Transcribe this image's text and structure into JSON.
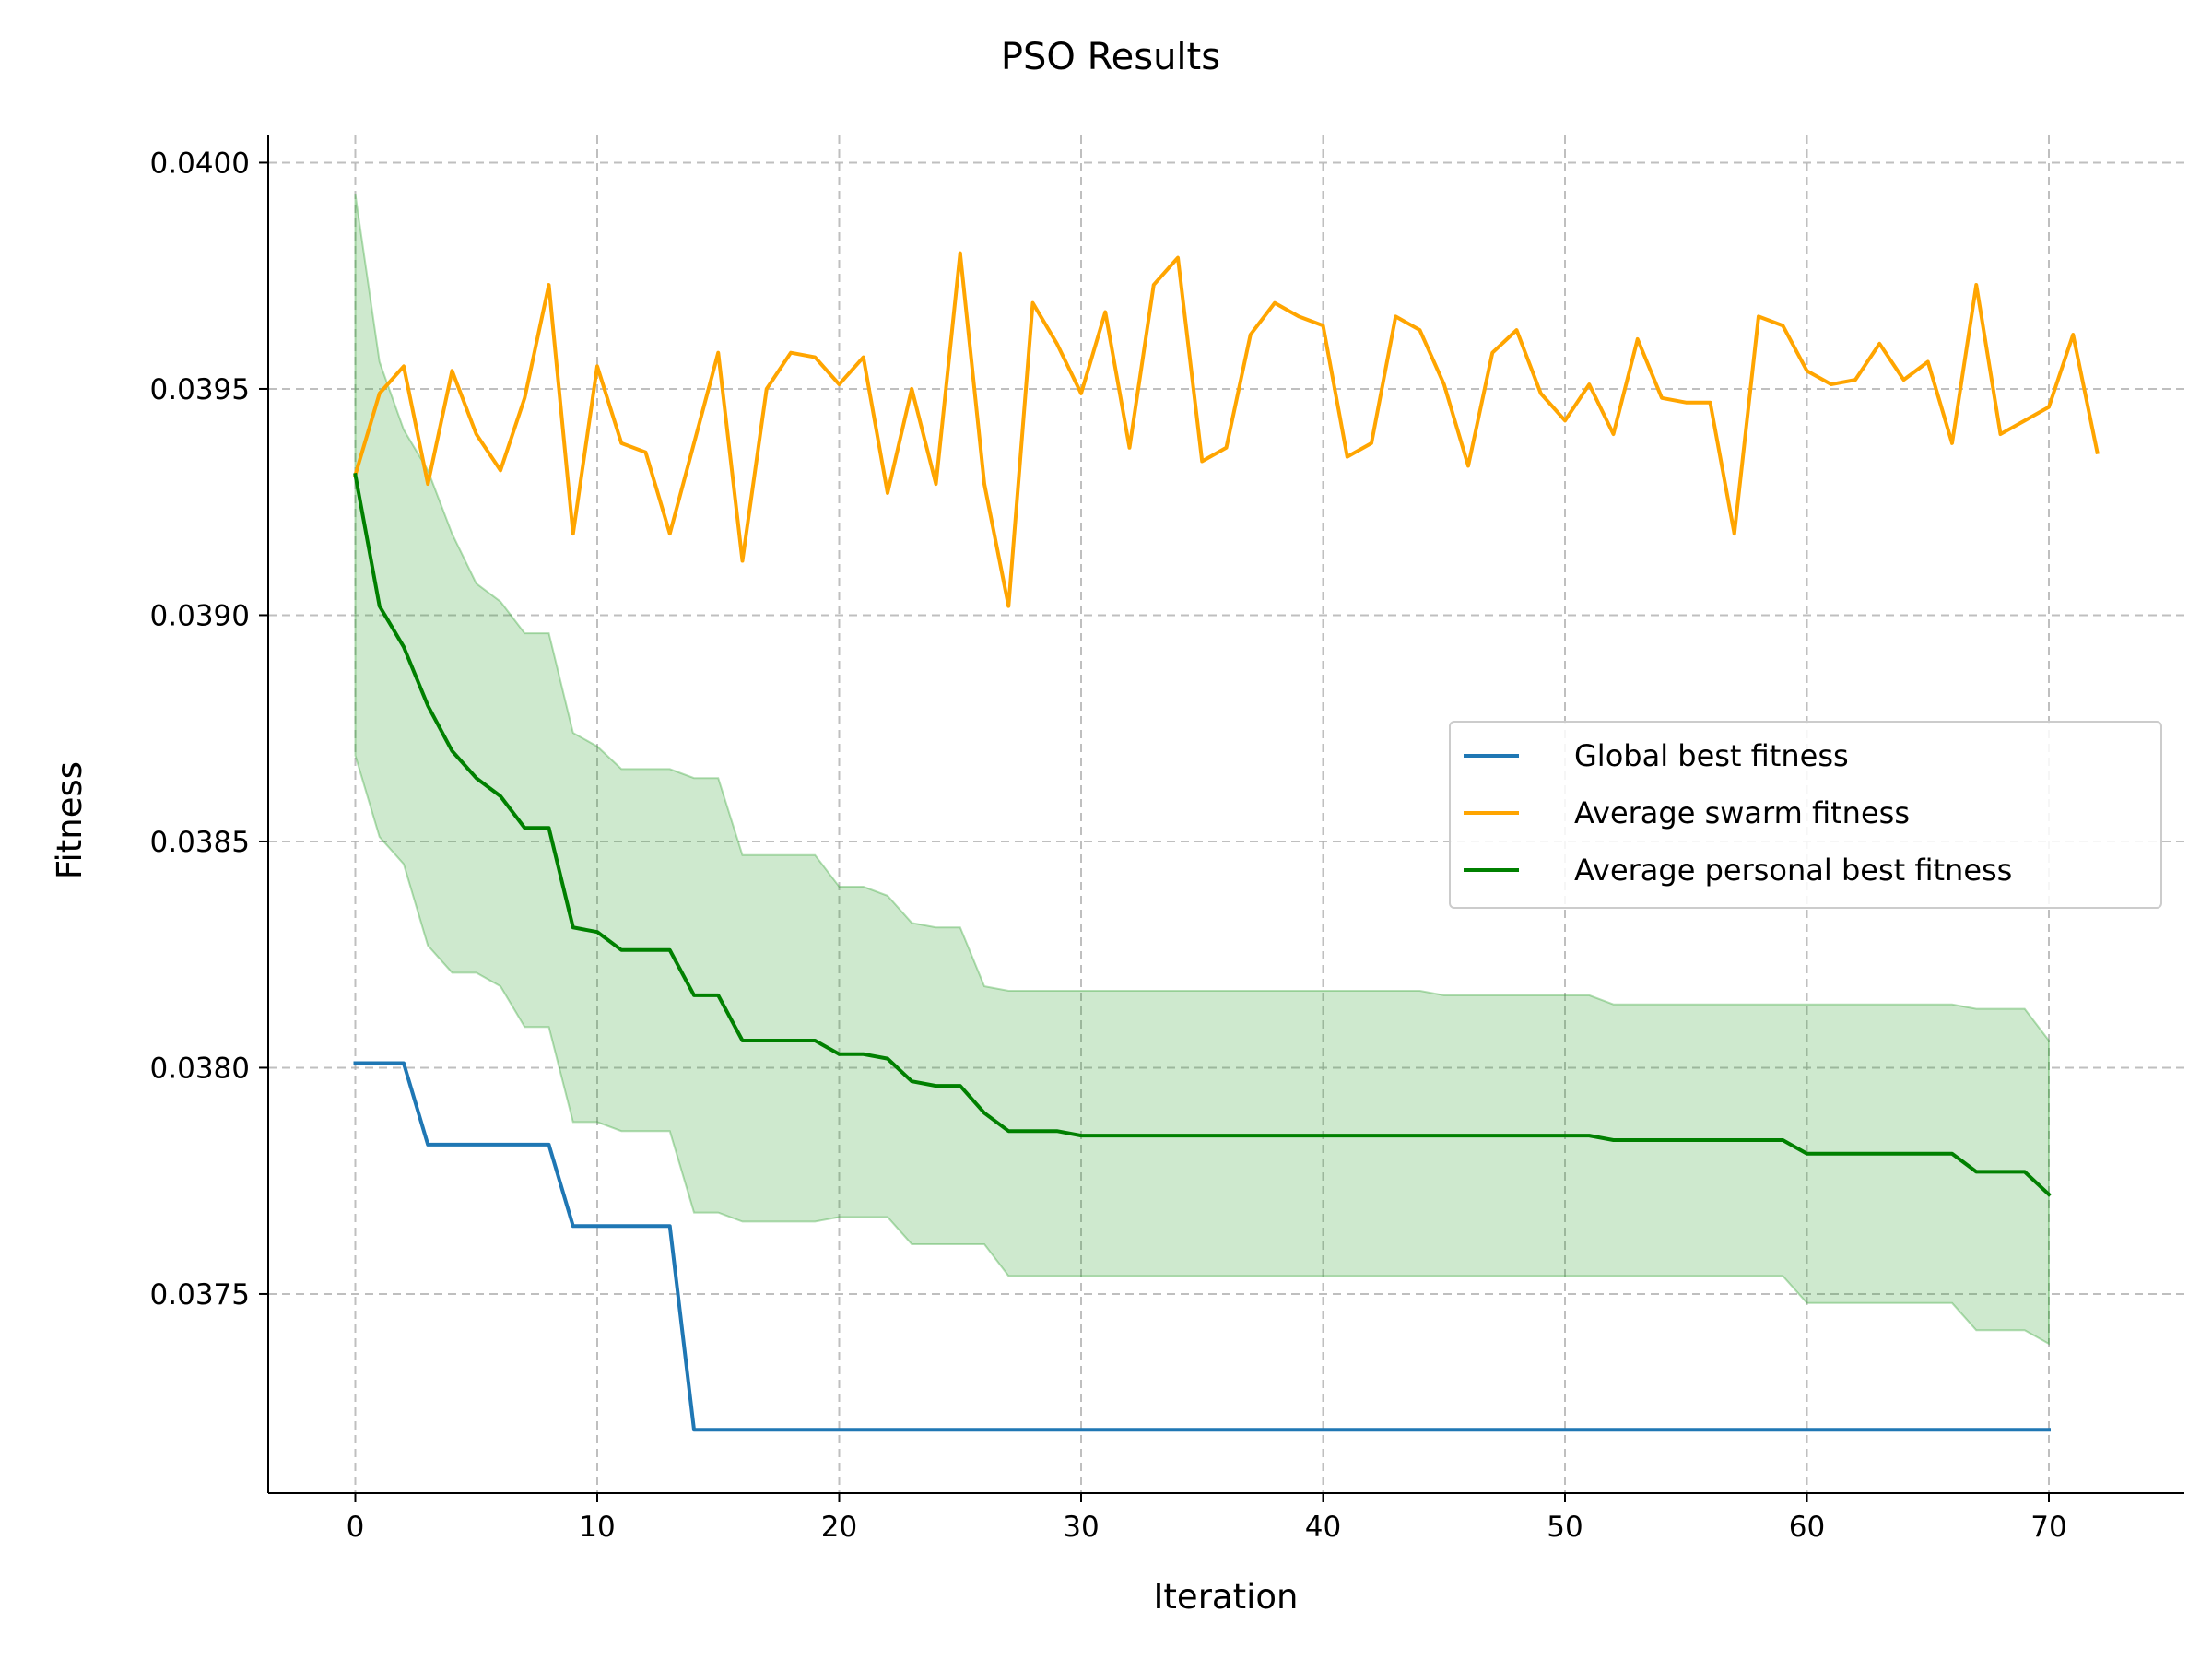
{
  "chart_data": {
    "type": "line",
    "title": "PSO Results",
    "xlabel": "Iteration",
    "ylabel": "Fitness",
    "xlim": [
      -3.6,
      75.6
    ],
    "ylim": [
      0.03706,
      0.04006
    ],
    "xticks": [
      0,
      10,
      20,
      30,
      40,
      50,
      60,
      70
    ],
    "xtick_labels": [
      "0",
      "10",
      "20",
      "30",
      "40",
      "50",
      "60",
      "70"
    ],
    "yticks": [
      0.0375,
      0.038,
      0.0385,
      0.039,
      0.0395,
      0.04
    ],
    "ytick_labels": [
      "0.0375",
      "0.0380",
      "0.0385",
      "0.0390",
      "0.0395",
      "0.0400"
    ],
    "grid": true,
    "legend_position": "center-right",
    "series": [
      {
        "name": "Global best fitness",
        "color": "#1f77b4",
        "x": [
          0,
          2,
          3,
          8,
          9,
          13,
          14,
          70
        ],
        "y": [
          0.03801,
          0.03801,
          0.03783,
          0.03783,
          0.03765,
          0.03765,
          0.0372,
          0.0372
        ],
        "step": true
      },
      {
        "name": "Average swarm fitness",
        "color": "#ffa500",
        "x": [
          0,
          1,
          2,
          3,
          4,
          5,
          6,
          7,
          8,
          9,
          10,
          11,
          12,
          13,
          14,
          15,
          16,
          17,
          18,
          19,
          20,
          21,
          22,
          23,
          24,
          25,
          26,
          27,
          28,
          29,
          30,
          31,
          32,
          33,
          34,
          35,
          36,
          37,
          38,
          39,
          40,
          41,
          42,
          43,
          44,
          45,
          46,
          47,
          48,
          49,
          50,
          51,
          52,
          53,
          54,
          55,
          56,
          57,
          58,
          59,
          60,
          61,
          62,
          63,
          64,
          65,
          66,
          67,
          68,
          69,
          70,
          71,
          72
        ],
        "y": [
          0.03931,
          0.03949,
          0.03955,
          0.03929,
          0.03954,
          0.0394,
          0.03932,
          0.03948,
          0.03973,
          0.03918,
          0.03955,
          0.03938,
          0.03936,
          0.03918,
          0.03938,
          0.03958,
          0.03912,
          0.0395,
          0.03958,
          0.03957,
          0.03951,
          0.03957,
          0.03927,
          0.0395,
          0.03929,
          0.0398,
          0.03929,
          0.03902,
          0.03969,
          0.0396,
          0.03949,
          0.03967,
          0.03937,
          0.03973,
          0.03979,
          0.03934,
          0.03937,
          0.03962,
          0.03969,
          0.03966,
          0.03964,
          0.03935,
          0.03938,
          0.03966,
          0.03963,
          0.03951,
          0.03933,
          0.03958,
          0.03963,
          0.03949,
          0.03943,
          0.03951,
          0.0394,
          0.03961,
          0.03948,
          0.03947,
          0.03947,
          0.03918,
          0.03966,
          0.03964,
          0.03954,
          0.03951,
          0.03952,
          0.0396,
          0.03952,
          0.03956,
          0.03938,
          0.03973,
          0.0394,
          0.03943,
          0.03946,
          0.03962,
          0.03936
        ]
      },
      {
        "name": "Average personal best fitness",
        "color": "#008000",
        "band_color": "#2ca02c",
        "x": [
          0,
          1,
          2,
          3,
          4,
          5,
          6,
          7,
          8,
          9,
          10,
          11,
          12,
          13,
          14,
          15,
          16,
          17,
          18,
          19,
          20,
          21,
          22,
          23,
          24,
          25,
          26,
          27,
          28,
          29,
          30,
          31,
          32,
          33,
          34,
          35,
          36,
          37,
          38,
          39,
          40,
          41,
          42,
          43,
          44,
          45,
          46,
          47,
          48,
          49,
          50,
          51,
          52,
          53,
          54,
          55,
          56,
          57,
          58,
          59,
          60,
          61,
          62,
          63,
          64,
          65,
          66,
          67,
          68,
          69,
          70
        ],
        "y": [
          0.03931,
          0.03902,
          0.03893,
          0.0388,
          0.0387,
          0.03864,
          0.0386,
          0.03853,
          0.03853,
          0.03831,
          0.0383,
          0.03826,
          0.03826,
          0.03826,
          0.03816,
          0.03816,
          0.03806,
          0.03806,
          0.03806,
          0.03806,
          0.03803,
          0.03803,
          0.03802,
          0.03797,
          0.03796,
          0.03796,
          0.0379,
          0.03786,
          0.03786,
          0.03786,
          0.03785,
          0.03785,
          0.03785,
          0.03785,
          0.03785,
          0.03785,
          0.03785,
          0.03785,
          0.03785,
          0.03785,
          0.03785,
          0.03785,
          0.03785,
          0.03785,
          0.03785,
          0.03785,
          0.03785,
          0.03785,
          0.03785,
          0.03785,
          0.03785,
          0.03785,
          0.03784,
          0.03784,
          0.03784,
          0.03784,
          0.03784,
          0.03784,
          0.03784,
          0.03784,
          0.03781,
          0.03781,
          0.03781,
          0.03781,
          0.03781,
          0.03781,
          0.03781,
          0.03777,
          0.03777,
          0.03777,
          0.03772
        ],
        "upper": [
          0.03993,
          0.03956,
          0.03941,
          0.03932,
          0.03918,
          0.03907,
          0.03903,
          0.03896,
          0.03896,
          0.03874,
          0.03871,
          0.03866,
          0.03866,
          0.03866,
          0.03864,
          0.03864,
          0.03847,
          0.03847,
          0.03847,
          0.03847,
          0.0384,
          0.0384,
          0.03838,
          0.03832,
          0.03831,
          0.03831,
          0.03818,
          0.03817,
          0.03817,
          0.03817,
          0.03817,
          0.03817,
          0.03817,
          0.03817,
          0.03817,
          0.03817,
          0.03817,
          0.03817,
          0.03817,
          0.03817,
          0.03817,
          0.03817,
          0.03817,
          0.03817,
          0.03817,
          0.03816,
          0.03816,
          0.03816,
          0.03816,
          0.03816,
          0.03816,
          0.03816,
          0.03814,
          0.03814,
          0.03814,
          0.03814,
          0.03814,
          0.03814,
          0.03814,
          0.03814,
          0.03814,
          0.03814,
          0.03814,
          0.03814,
          0.03814,
          0.03814,
          0.03814,
          0.03813,
          0.03813,
          0.03813,
          0.03806
        ],
        "lower": [
          0.03869,
          0.03851,
          0.03845,
          0.03827,
          0.03821,
          0.03821,
          0.03818,
          0.03809,
          0.03809,
          0.03788,
          0.03788,
          0.03786,
          0.03786,
          0.03786,
          0.03768,
          0.03768,
          0.03766,
          0.03766,
          0.03766,
          0.03766,
          0.03767,
          0.03767,
          0.03767,
          0.03761,
          0.03761,
          0.03761,
          0.03761,
          0.03754,
          0.03754,
          0.03754,
          0.03754,
          0.03754,
          0.03754,
          0.03754,
          0.03754,
          0.03754,
          0.03754,
          0.03754,
          0.03754,
          0.03754,
          0.03754,
          0.03754,
          0.03754,
          0.03754,
          0.03754,
          0.03754,
          0.03754,
          0.03754,
          0.03754,
          0.03754,
          0.03754,
          0.03754,
          0.03754,
          0.03754,
          0.03754,
          0.03754,
          0.03754,
          0.03754,
          0.03754,
          0.03754,
          0.03748,
          0.03748,
          0.03748,
          0.03748,
          0.03748,
          0.03748,
          0.03748,
          0.03742,
          0.03742,
          0.03742,
          0.03739
        ]
      }
    ]
  }
}
